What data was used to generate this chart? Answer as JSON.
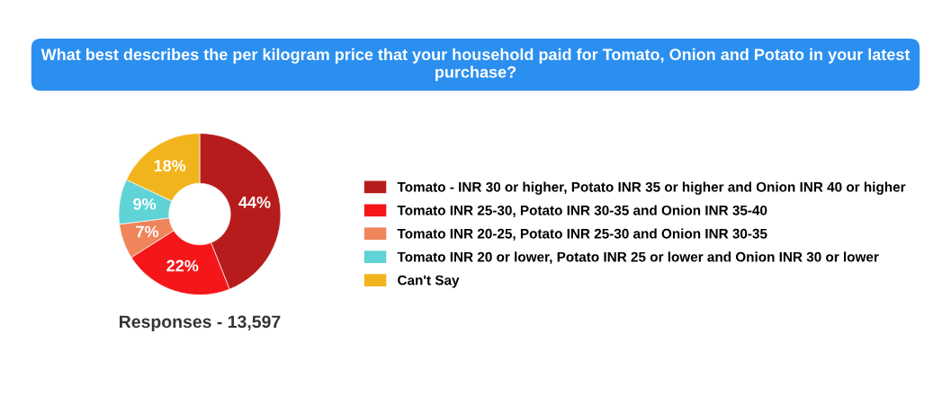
{
  "chart_data": {
    "type": "donut",
    "title": "What best describes the per kilogram price that your household paid for Tomato, Onion and Potato in your latest purchase?",
    "categories": [
      "Tomato - INR 30 or higher, Potato INR 35 or higher and Onion INR 40 or higher",
      "Tomato INR 25-30, Potato INR 30-35 and Onion INR 35-40",
      "Tomato INR 20-25, Potato INR 25-30 and Onion INR 30-35",
      "Tomato INR 20 or lower, Potato INR 25 or lower and Onion INR 30 or lower",
      "Can't Say"
    ],
    "values": [
      44,
      22,
      7,
      9,
      18
    ],
    "colors": [
      "#b71c1c",
      "#f5161a",
      "#f0845a",
      "#5fd3d6",
      "#f2b41c"
    ],
    "value_labels": [
      "44%",
      "22%",
      "7%",
      "9%",
      "18%"
    ],
    "legend": "right",
    "annotations": [
      "Responses - 13,597"
    ]
  }
}
